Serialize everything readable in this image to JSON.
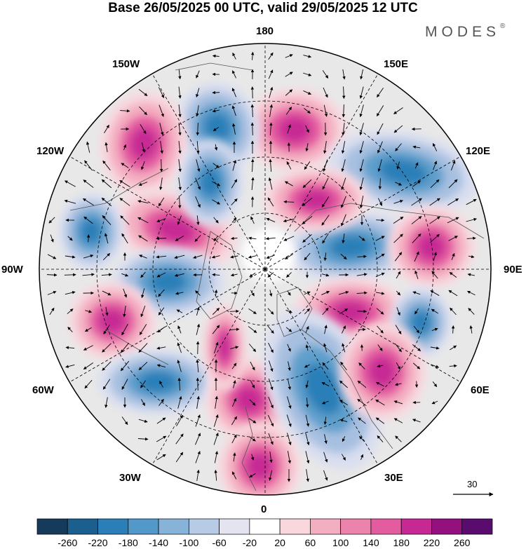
{
  "title": "Base 26/05/2025 00 UTC, valid 29/05/2025 12 UTC",
  "brand": "MODES",
  "brand_mark": "®",
  "longitude_labels": {
    "top": "180",
    "bottom": "0",
    "left": "90W",
    "right": "90E",
    "upper_left_1": "150W",
    "upper_left_2": "120W",
    "upper_right_1": "150E",
    "upper_right_2": "120E",
    "lower_left_1": "60W",
    "lower_left_2": "30W",
    "lower_right_1": "60E",
    "lower_right_2": "30E"
  },
  "vector_scale_label": "30",
  "colorbar": {
    "labels": [
      "-260",
      "-220",
      "-180",
      "-140",
      "-100",
      "-60",
      "-20",
      "20",
      "60",
      "100",
      "140",
      "180",
      "220",
      "260"
    ],
    "colors": [
      "#153a5a",
      "#1a5f8e",
      "#2b7fb8",
      "#5298c8",
      "#87b3d9",
      "#b7cbe6",
      "#e4e4f1",
      "#ffffff",
      "#fad7dc",
      "#f4aec1",
      "#ec83ad",
      "#e45ca0",
      "#c72994",
      "#94107f",
      "#5a0b6e"
    ]
  },
  "anomaly_colors": {
    "neg_strong": "#2b7fb8",
    "neg_mid": "#5f9fcc",
    "neg_weak": "#a7c0e0",
    "neg_faint": "#d9def0",
    "pos_strong": "#c72994",
    "pos_mid": "#e45ca0",
    "pos_weak": "#f4aec1",
    "pos_faint": "#f8d8df",
    "land_bg": "#e6e6e6"
  }
}
